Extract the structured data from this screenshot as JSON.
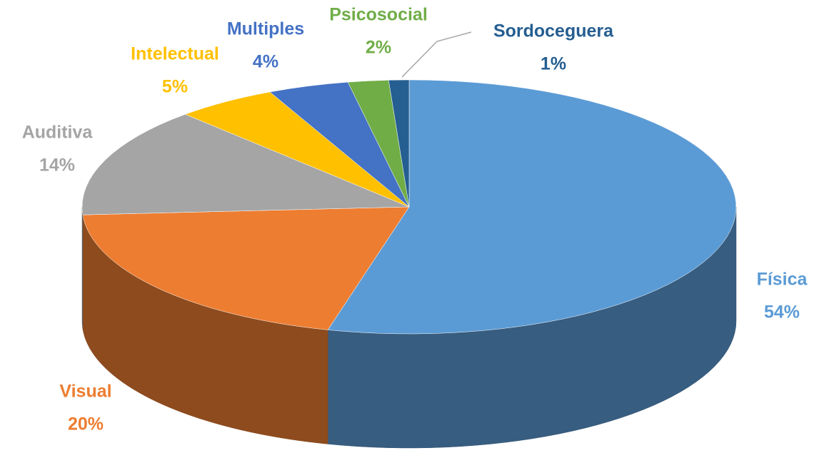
{
  "chart_data": {
    "type": "pie",
    "categories": [
      "Física",
      "Visual",
      "Auditiva",
      "Intelectual",
      "Multiples",
      "Psicosocial",
      "Sordoceguera"
    ],
    "values": [
      54,
      20,
      14,
      5,
      4,
      2,
      1
    ],
    "value_labels": [
      "54%",
      "20%",
      "14%",
      "5%",
      "4%",
      "2%",
      "1%"
    ],
    "colors": [
      "#5b9bd5",
      "#ed7d31",
      "#a5a5a5",
      "#ffc000",
      "#4472c4",
      "#70ad47",
      "#255e91"
    ]
  }
}
